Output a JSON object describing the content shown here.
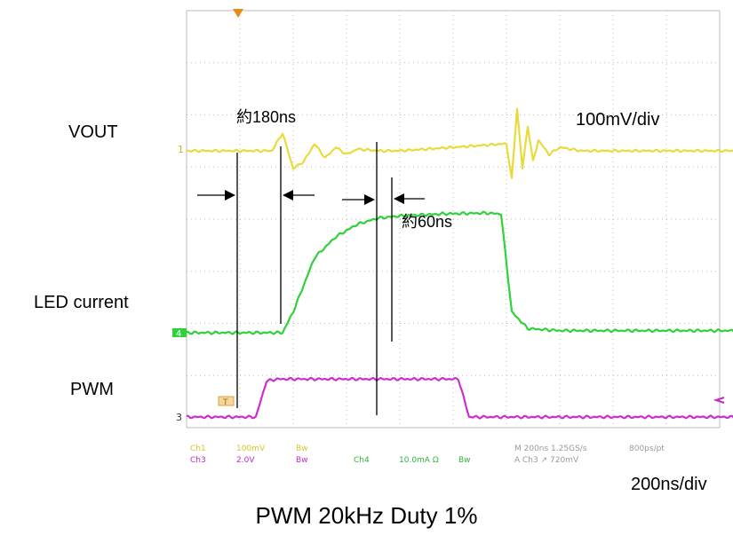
{
  "labels": {
    "vout": "VOUT",
    "led_current": "LED current",
    "pwm": "PWM",
    "vscale": "100mV/div",
    "hscale": "200ns/div",
    "caption": "PWM 20kHz Duty 1%"
  },
  "annotations": {
    "delay1": "約180ns",
    "delay2": "約60ns"
  },
  "scope_footer": {
    "ch1": "Ch1",
    "ch1_scale": "100mV",
    "ch1_bw": "Bw",
    "ch3": "Ch3",
    "ch3_scale": "2.0V",
    "ch3_bw": "Bw",
    "ch4": "Ch4",
    "ch4_scale": "10.0mA Ω",
    "ch4_bw": "Bw",
    "timebase": "M 200ns 1.25GS/s",
    "record": "800ps/pt",
    "trigger": "A Ch3 ↗ 720mV"
  },
  "markers": {
    "ch1": "1",
    "ch4": "4",
    "ch3": "3",
    "trig": "T"
  },
  "colors": {
    "screen": "#ffffff",
    "grid": "#bdbdbd",
    "ch1": "#e8dc3a",
    "ch4": "#2fd23a",
    "ch3": "#cc2fd0"
  },
  "chart_data": {
    "type": "line",
    "x_unit": "div (200ns/div)",
    "series": [
      {
        "name": "VOUT",
        "x": [
          0,
          0.8,
          0.9,
          1.0,
          1.1,
          1.2,
          1.3,
          1.4,
          1.5,
          1.6,
          1.8,
          2.0,
          3.0,
          3.05,
          3.1,
          3.15,
          3.2,
          3.25,
          3.3,
          3.4,
          3.5,
          3.7,
          4.0,
          6.0
        ],
        "y": [
          0,
          0,
          0.5,
          -0.5,
          -0.3,
          0.2,
          -0.2,
          0.1,
          -0.1,
          0.05,
          0,
          0,
          0.2,
          -0.8,
          1.2,
          -0.5,
          0.7,
          -0.3,
          0.3,
          -0.1,
          0.1,
          0,
          0,
          0
        ]
      },
      {
        "name": "LED current",
        "x": [
          0,
          0.9,
          1.0,
          1.2,
          1.4,
          1.6,
          1.8,
          2.0,
          2.4,
          2.8,
          2.95,
          3.05,
          3.2,
          3.5,
          6.0
        ],
        "y": [
          0,
          0,
          0.5,
          1.8,
          2.3,
          2.6,
          2.75,
          2.8,
          2.85,
          2.87,
          2.85,
          0.5,
          0.1,
          0.05,
          0.05
        ]
      },
      {
        "name": "PWM",
        "x": [
          0,
          0.65,
          0.75,
          0.85,
          2.55,
          2.65,
          6.0
        ],
        "y": [
          0,
          0,
          0.9,
          0.95,
          0.95,
          0,
          0
        ]
      }
    ]
  }
}
